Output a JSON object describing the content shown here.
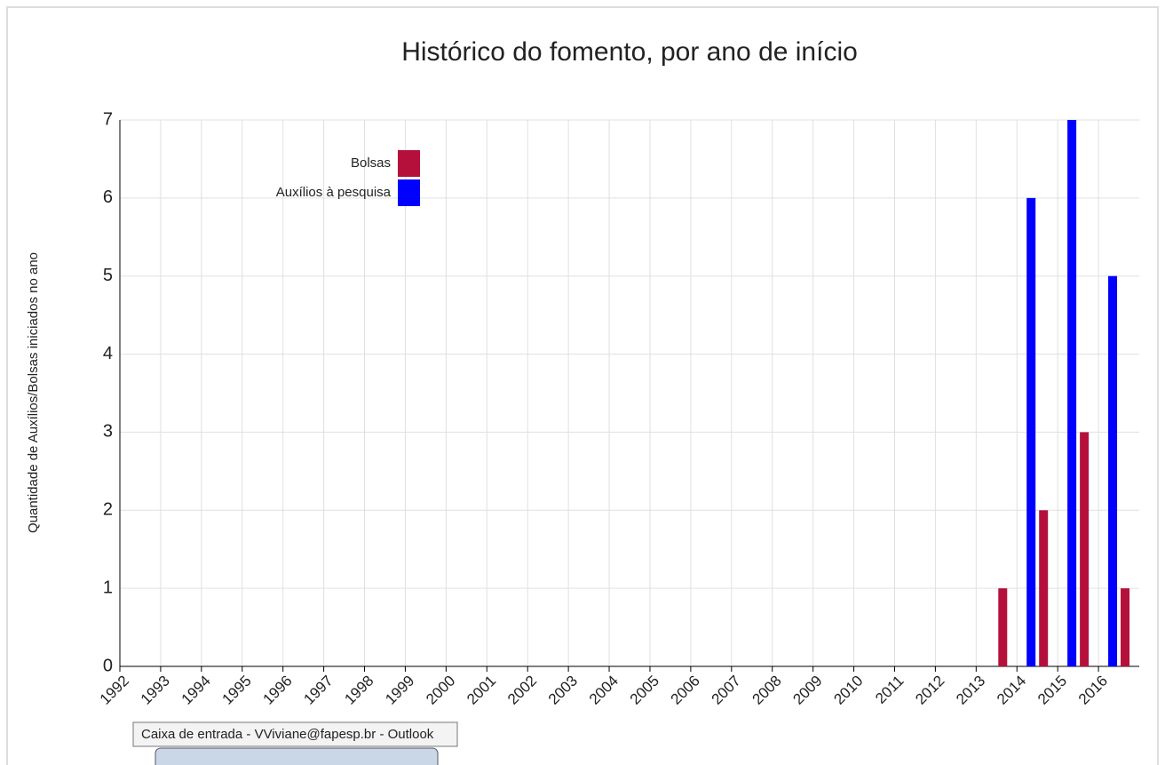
{
  "chart_data": {
    "type": "bar",
    "title": "Histórico do fomento, por ano de início",
    "ylabel": "Quantidade de Auxílios/Bolsas iniciados no ano",
    "categories": [
      "1992",
      "1993",
      "1994",
      "1995",
      "1996",
      "1997",
      "1998",
      "1999",
      "2000",
      "2001",
      "2002",
      "2003",
      "2004",
      "2005",
      "2006",
      "2007",
      "2008",
      "2009",
      "2010",
      "2011",
      "2012",
      "2013",
      "2014",
      "2015",
      "2016"
    ],
    "series": [
      {
        "name": "Bolsas",
        "color": "#b5103c",
        "values": [
          0,
          0,
          0,
          0,
          0,
          0,
          0,
          0,
          0,
          0,
          0,
          0,
          0,
          0,
          0,
          0,
          0,
          0,
          0,
          0,
          0,
          1,
          2,
          3,
          1
        ]
      },
      {
        "name": "Auxílios à pesquisa",
        "color": "#0000ff",
        "values": [
          0,
          0,
          0,
          0,
          0,
          0,
          0,
          0,
          0,
          0,
          0,
          0,
          0,
          0,
          0,
          0,
          0,
          0,
          0,
          0,
          0,
          0,
          6,
          7,
          5
        ]
      }
    ],
    "ylim": [
      0,
      7
    ],
    "yticks": [
      0,
      1,
      2,
      3,
      4,
      5,
      6,
      7
    ],
    "grid": true,
    "legend": "top-left"
  },
  "overlay": {
    "tooltip": "Caixa de entrada - VViviane@fapesp.br - Outlook"
  }
}
